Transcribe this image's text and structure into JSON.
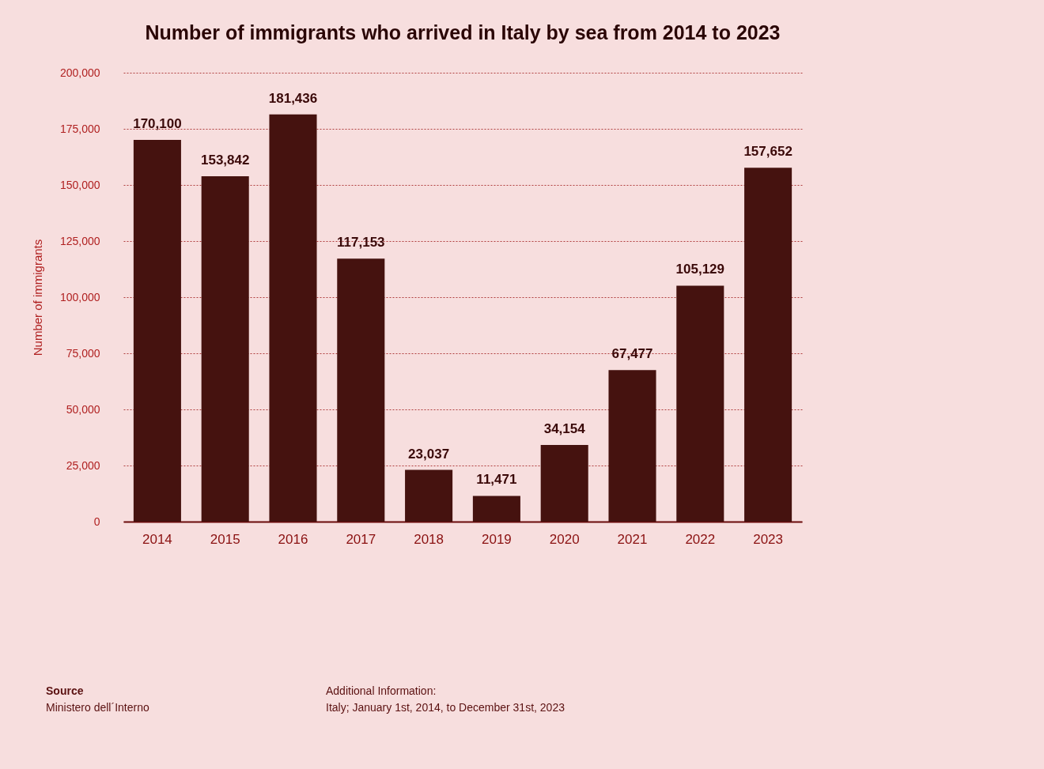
{
  "chart_data": {
    "type": "bar",
    "title": "Number of immigrants who arrived in Italy by sea from 2014 to 2023",
    "ylabel": "Number of immigrants",
    "categories": [
      "2014",
      "2015",
      "2016",
      "2017",
      "2018",
      "2019",
      "2020",
      "2021",
      "2022",
      "2023"
    ],
    "values": [
      170100,
      153842,
      181436,
      117153,
      23037,
      11471,
      34154,
      67477,
      105129,
      157652
    ],
    "value_labels": [
      "170,100",
      "153,842",
      "181,436",
      "117,153",
      "23,037",
      "11,471",
      "34,154",
      "67,477",
      "105,129",
      "157,652"
    ],
    "color": "#45120f",
    "ylim": [
      0,
      200000
    ],
    "yticks": [
      0,
      {
        "value": 25000,
        "label": "25,000"
      },
      {
        "value": 50000,
        "label": "50,000"
      },
      {
        "value": 75000,
        "label": "75,000"
      },
      {
        "value": 100000,
        "label": "100,000"
      },
      {
        "value": 125000,
        "label": "125,000"
      },
      {
        "value": 150000,
        "label": "150,000"
      },
      {
        "value": 175000,
        "label": "175,000"
      },
      {
        "value": 200000,
        "label": "200,000"
      }
    ],
    "grid": "y",
    "annotations": [
      "Source",
      "Ministero dell´Interno",
      "Additional Information:",
      "Italy; January 1st, 2014, to December 31st, 2023"
    ]
  }
}
